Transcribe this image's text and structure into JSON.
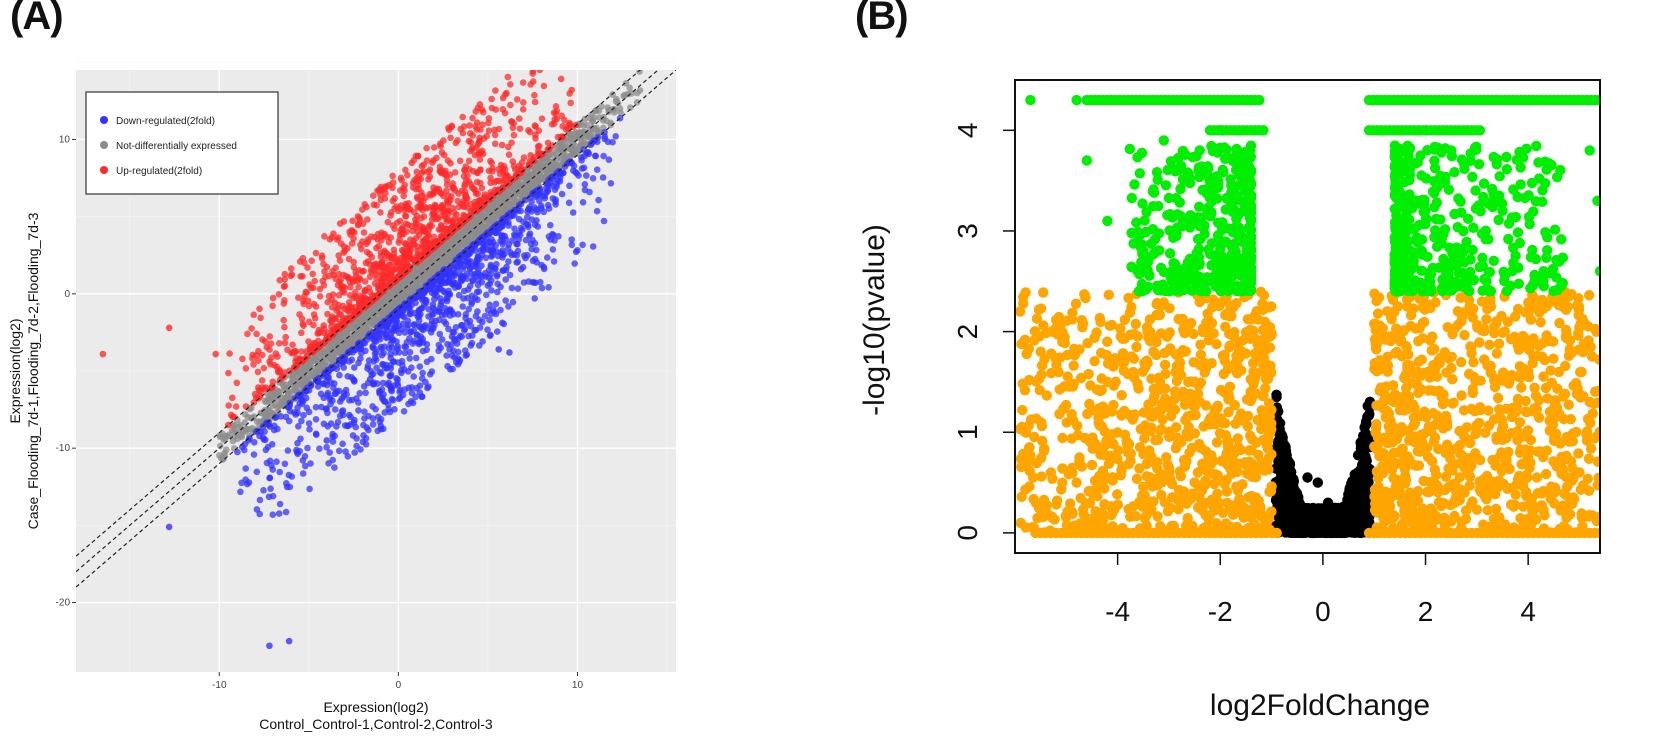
{
  "panels": {
    "a_label": "(A)",
    "b_label": "(B)"
  },
  "chart_data": [
    {
      "panel": "(A)",
      "type": "scatter",
      "xlabel": "Expression(log2)",
      "xlabel_line2": "Control_Control-1,Control-2,Control-3",
      "ylabel": "Expression(log2)",
      "ylabel_line2": "Case_Flooding_7d-1,Flooding_7d-2,Flooding_7d-3",
      "xlim": [
        -18,
        15.5
      ],
      "ylim": [
        -24.5,
        14.5
      ],
      "xticks": [
        -10,
        0,
        10
      ],
      "yticks": [
        10,
        0,
        -10,
        -20
      ],
      "grid": true,
      "background": "#ebebeb",
      "legend_position": "top-left",
      "reference_lines": [
        {
          "name": "y=x",
          "slope": 1,
          "intercept": 0
        },
        {
          "name": "y=x+1",
          "slope": 1,
          "intercept": 1
        },
        {
          "name": "y=x-1",
          "slope": 1,
          "intercept": -1
        }
      ],
      "series": [
        {
          "name": "Down-regulated(2fold)",
          "color": "#3333ff",
          "trend": {
            "x_range": [
              -9,
              12.5
            ],
            "offset_range": [
              -8,
              -1
            ],
            "count": 1200
          },
          "outliers": [
            [
              -12.8,
              -15.1
            ],
            [
              -7.2,
              -22.8
            ],
            [
              -6.1,
              -22.5
            ],
            [
              5.6,
              -3.6
            ],
            [
              6.2,
              -3.8
            ],
            [
              -4,
              -9.5
            ]
          ]
        },
        {
          "name": "Not-differentially expressed",
          "color": "#8c8c8c",
          "trend": {
            "x_range": [
              -10,
              13.5
            ],
            "offset_range": [
              -1,
              1
            ],
            "count": 1800
          },
          "outliers": []
        },
        {
          "name": "Up-regulated(2fold)",
          "color": "#ff2a2a",
          "trend": {
            "x_range": [
              -9.5,
              10
            ],
            "offset_range": [
              1,
              8
            ],
            "count": 1200
          },
          "outliers": [
            [
              -16.5,
              -3.9
            ],
            [
              -12.8,
              -2.2
            ],
            [
              -10.2,
              -3.9
            ],
            [
              -9.5,
              -8.5
            ]
          ]
        }
      ]
    },
    {
      "panel": "(B)",
      "type": "scatter",
      "xlabel": "log2FoldChange",
      "ylabel": "-log10(pvalue)",
      "xlim": [
        -6,
        5.4
      ],
      "ylim": [
        -0.2,
        4.5
      ],
      "xticks": [
        -4,
        -2,
        0,
        2,
        4
      ],
      "yticks": [
        0,
        1,
        2,
        3,
        4
      ],
      "grid": false,
      "series": [
        {
          "name": "",
          "color": "#00ee00",
          "region": "|log2FC|>1 and -log10(p)>2.4"
        },
        {
          "name": "",
          "color": "#ffa500",
          "region": "|log2FC|>1 and -log10(p)<=2.4"
        },
        {
          "name": "",
          "color": "#000000",
          "region": "|log2FC|<=1"
        }
      ],
      "sample_points": {
        "green": [
          [
            -5.7,
            4.3
          ],
          [
            -4.8,
            4.3
          ],
          [
            -4.6,
            3.7
          ],
          [
            -4.2,
            3.1
          ],
          [
            -3.5,
            2.8
          ],
          [
            -3.1,
            3.9
          ],
          [
            -2.4,
            3.8
          ],
          [
            -2,
            4
          ],
          [
            2,
            4
          ],
          [
            2.5,
            3.8
          ],
          [
            3.5,
            3.2
          ],
          [
            4.3,
            2.6
          ],
          [
            5.2,
            3.8
          ],
          [
            5.35,
            3.3
          ],
          [
            5.4,
            2.6
          ]
        ],
        "orange": [
          [
            -5.9,
            2.2
          ],
          [
            -5.5,
            1.8
          ],
          [
            -5.8,
            1
          ],
          [
            -5.3,
            0.6
          ],
          [
            -4.8,
            0.5
          ],
          [
            -4.2,
            1.5
          ],
          [
            -3.8,
            0.8
          ],
          [
            5.4,
            2
          ],
          [
            5.2,
            1.3
          ],
          [
            5,
            0.6
          ],
          [
            4.6,
            1.6
          ]
        ],
        "black": [
          [
            -0.3,
            0.55
          ],
          [
            -0.1,
            0.5
          ],
          [
            0.1,
            0.3
          ],
          [
            0.3,
            0.2
          ]
        ]
      }
    }
  ]
}
